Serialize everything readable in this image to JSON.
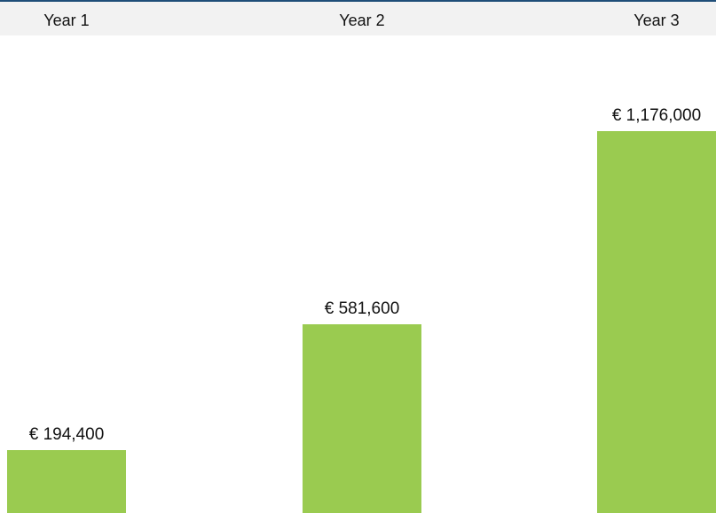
{
  "chart_data": {
    "type": "bar",
    "categories": [
      "Year 1",
      "Year 2",
      "Year 3"
    ],
    "values": [
      194400,
      581600,
      1176000
    ],
    "value_labels": [
      "€ 194,400",
      "€ 581,600",
      "€ 1,176,000"
    ],
    "title": "",
    "xlabel": "",
    "ylabel": "",
    "ylim": [
      0,
      1470000
    ],
    "grid": false,
    "legend": "none",
    "colors": {
      "bar": "#9ACB50",
      "header_band": "#F2F2F2",
      "top_rule": "#1F4E79"
    }
  }
}
